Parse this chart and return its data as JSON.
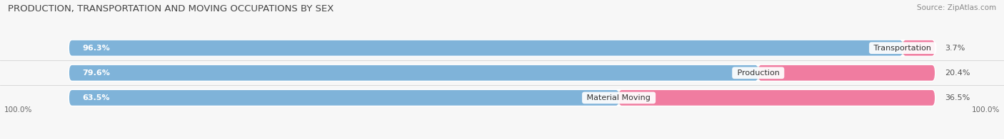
{
  "title": "PRODUCTION, TRANSPORTATION AND MOVING OCCUPATIONS BY SEX",
  "source": "Source: ZipAtlas.com",
  "categories": [
    "Transportation",
    "Production",
    "Material Moving"
  ],
  "male_pct": [
    96.3,
    79.6,
    63.5
  ],
  "female_pct": [
    3.7,
    20.4,
    36.5
  ],
  "male_color": "#7fb3d9",
  "female_color": "#f07ca0",
  "bar_bg_color": "#e2e2e2",
  "bar_border_color": "#d0d0d0",
  "background_color": "#f7f7f7",
  "title_fontsize": 9.5,
  "label_fontsize": 8,
  "pct_fontsize": 8,
  "source_fontsize": 7.5,
  "bar_height": 0.62,
  "legend_male_color": "#7fb3d9",
  "legend_female_color": "#f07ca0",
  "xlim_left": -8,
  "xlim_right": 108,
  "bar_total": 100
}
